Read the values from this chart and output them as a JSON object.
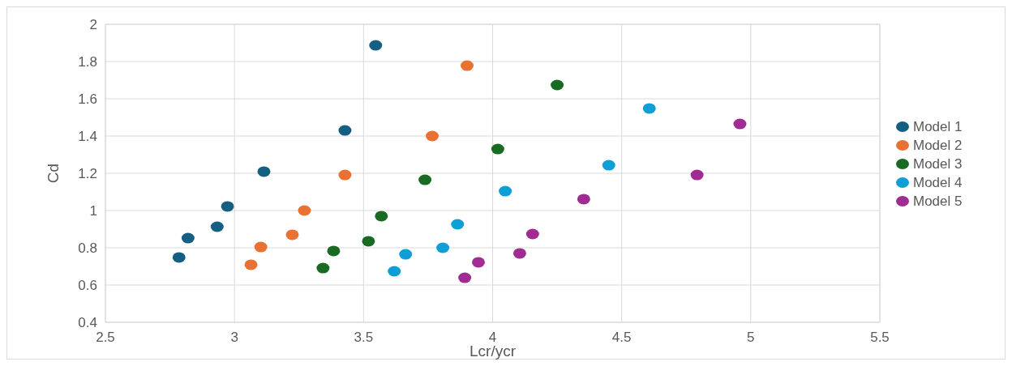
{
  "chart_data": {
    "type": "scatter",
    "xlabel": "Lcr/ycr",
    "ylabel": "Cd",
    "xlim": [
      2.5,
      5.5
    ],
    "xticks": [
      2.5,
      3,
      3.5,
      4,
      4.5,
      5,
      5.5
    ],
    "ylim": [
      0.4,
      2
    ],
    "yticks": [
      0.4,
      0.6,
      0.8,
      1,
      1.2,
      1.4,
      1.6,
      1.8,
      2
    ],
    "grid": true,
    "legend": "right",
    "marker": "circle",
    "series": [
      {
        "name": "Model 1",
        "color": "#156082",
        "x": [
          2.785,
          2.82,
          2.933,
          2.973,
          3.114,
          3.428,
          3.547
        ],
        "values": [
          0.748,
          0.852,
          0.913,
          1.022,
          1.209,
          1.43,
          1.887
        ]
      },
      {
        "name": "Model 2",
        "color": "#e97132",
        "x": [
          3.064,
          3.102,
          3.224,
          3.271,
          3.428,
          3.766,
          3.901
        ],
        "values": [
          0.709,
          0.804,
          0.87,
          1.0,
          1.191,
          1.4,
          1.778
        ]
      },
      {
        "name": "Model 3",
        "color": "#196b24",
        "x": [
          3.343,
          3.384,
          3.519,
          3.569,
          3.738,
          4.02,
          4.25
        ],
        "values": [
          0.691,
          0.783,
          0.835,
          0.97,
          1.165,
          1.33,
          1.674
        ]
      },
      {
        "name": "Model 4",
        "color": "#0f9ed5",
        "x": [
          3.619,
          3.663,
          3.807,
          3.864,
          4.049,
          4.45,
          4.607
        ],
        "values": [
          0.674,
          0.765,
          0.8,
          0.926,
          1.104,
          1.243,
          1.548
        ]
      },
      {
        "name": "Model 5",
        "color": "#a02b93",
        "x": [
          3.892,
          3.945,
          4.105,
          4.155,
          4.353,
          4.792,
          4.958
        ],
        "values": [
          0.639,
          0.722,
          0.77,
          0.874,
          1.061,
          1.191,
          1.465
        ]
      }
    ]
  }
}
